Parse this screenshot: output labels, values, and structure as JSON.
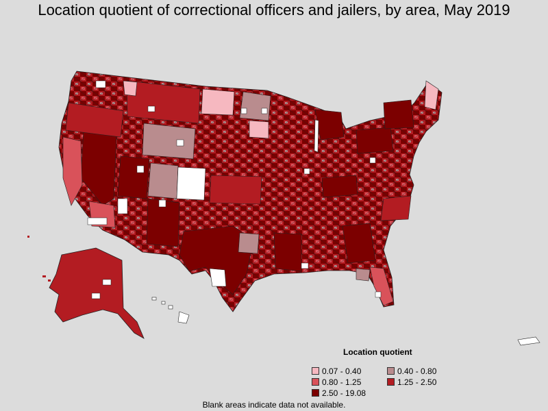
{
  "title": "Location quotient of correctional officers and jailers, by area, May 2019",
  "legend": {
    "title": "Location quotient",
    "items": [
      {
        "label": "0.07 - 0.40",
        "color": "#f6b8c0"
      },
      {
        "label": "0.40 - 0.80",
        "color": "#b98c8e"
      },
      {
        "label": "0.80 - 1.25",
        "color": "#d9525a"
      },
      {
        "label": "1.25 - 2.50",
        "color": "#b31c22"
      },
      {
        "label": "2.50 - 19.08",
        "color": "#7c0000"
      }
    ]
  },
  "footnote": "Blank areas indicate data not available.",
  "colors": {
    "background": "#dcdcdc",
    "no_data": "#ffffff",
    "border": "#222222"
  }
}
